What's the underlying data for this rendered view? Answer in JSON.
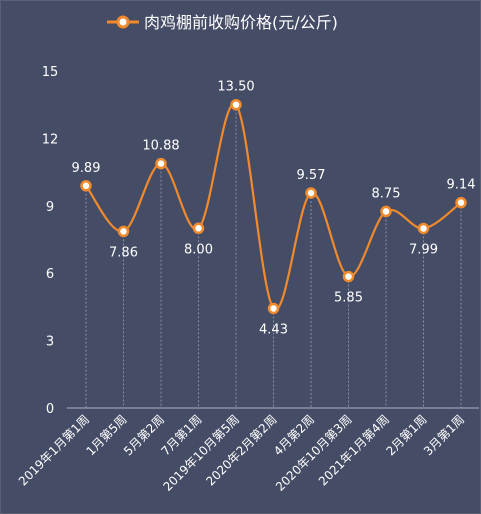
{
  "chart_data": {
    "type": "line",
    "series": [
      {
        "name": "肉鸡棚前收购价格(元/公斤)",
        "values": [
          9.89,
          7.86,
          10.88,
          8.0,
          13.5,
          4.43,
          9.57,
          5.85,
          8.75,
          7.99,
          9.14
        ],
        "labels": [
          "9.89",
          "7.86",
          "10.88",
          "8.00",
          "13.50",
          "4.43",
          "9.57",
          "5.85",
          "8.75",
          "7.99",
          "9.14"
        ]
      }
    ],
    "categories": [
      "2019年1月第1周",
      "1月第5周",
      "5月第2周",
      "7月第1周",
      "2019年10月第5周",
      "2020年2月第2周",
      "4月第2周",
      "2020年10月第3周",
      "2021年1月第4周",
      "2月第1周",
      "3月第1周"
    ],
    "yticks": [
      "0",
      "3",
      "6",
      "9",
      "12",
      "15"
    ],
    "ylim": [
      0,
      15
    ],
    "legend_position": "top",
    "smooth": true,
    "colors": {
      "background": "#454c66",
      "line": "#f08a2c",
      "marker_fill": "#ffffff",
      "text": "#ffffff",
      "grid": "#9aa0b4"
    }
  }
}
